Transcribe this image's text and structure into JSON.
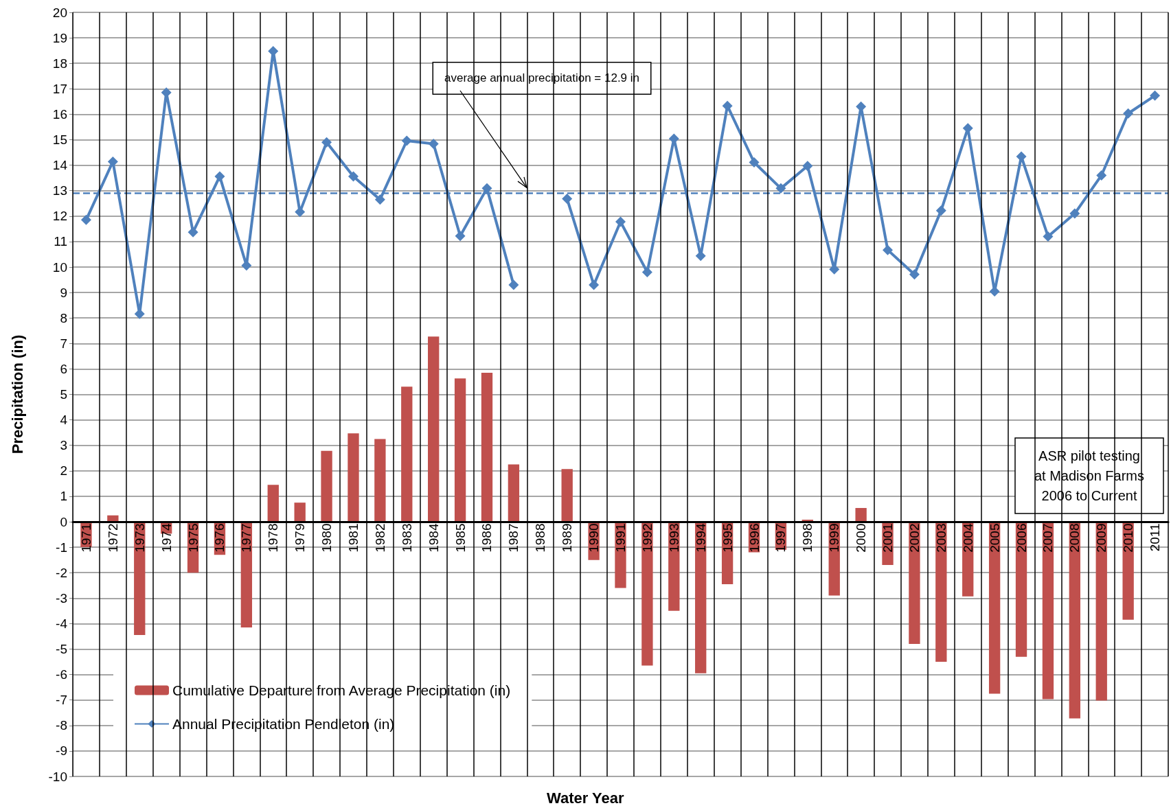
{
  "chart_data": {
    "type": "bar",
    "xlabel": "Water Year",
    "ylabel": "Precipitation (in)",
    "categories": [
      "1971",
      "1972",
      "1973",
      "1974",
      "1975",
      "1976",
      "1977",
      "1978",
      "1979",
      "1980",
      "1981",
      "1982",
      "1983",
      "1984",
      "1985",
      "1986",
      "1987",
      "1988",
      "1989",
      "1990",
      "1991",
      "1992",
      "1993",
      "1994",
      "1995",
      "1996",
      "1997",
      "1998",
      "1999",
      "2000",
      "2001",
      "2002",
      "2003",
      "2004",
      "2005",
      "2006",
      "2007",
      "2008",
      "2009",
      "2010",
      "2011"
    ],
    "series": [
      {
        "name": "Cumulative Departure from Average Precipitation (in)",
        "color": "#c0504d",
        "values": [
          -1.0,
          0.25,
          -4.45,
          -0.47,
          -2.0,
          -1.3,
          -4.15,
          1.45,
          0.75,
          2.78,
          3.47,
          3.25,
          5.3,
          7.27,
          5.63,
          5.85,
          2.25,
          null,
          2.07,
          -1.5,
          -2.6,
          -5.65,
          -3.5,
          -5.95,
          -2.45,
          -1.2,
          -1.1,
          0.08,
          -2.9,
          0.54,
          -1.7,
          -4.8,
          -5.5,
          -2.93,
          -6.75,
          -5.3,
          -6.97,
          -7.72,
          -7.02,
          -3.85,
          null
        ]
      },
      {
        "name": "Annual Precipitation Pendleton (in)",
        "type": "line",
        "color": "#4f81bd",
        "marker": "diamond",
        "line_style": "solid",
        "values": [
          11.85,
          14.14,
          8.16,
          16.85,
          11.37,
          13.56,
          10.06,
          18.48,
          12.16,
          14.9,
          13.56,
          12.65,
          14.96,
          14.84,
          11.22,
          13.09,
          9.3,
          null,
          12.68,
          9.3,
          11.78,
          9.8,
          15.04,
          10.44,
          16.33,
          14.11,
          13.09,
          13.97,
          9.91,
          16.3,
          10.67,
          9.71,
          12.22,
          15.45,
          9.04,
          14.34,
          11.2,
          12.1,
          13.6,
          16.03,
          16.73
        ]
      }
    ],
    "ylim": [
      -10,
      20
    ],
    "yticks": [
      -10,
      -9,
      -8,
      -7,
      -6,
      -5,
      -4,
      -3,
      -2,
      -1,
      0,
      1,
      2,
      3,
      4,
      5,
      6,
      7,
      8,
      9,
      10,
      11,
      12,
      13,
      14,
      15,
      16,
      17,
      18,
      19,
      20
    ],
    "ref_lines": [
      {
        "axis": "y",
        "value": 12.9,
        "label": "average annual precipitation = 12.9 in",
        "color": "#4f81bd",
        "line_style": "dashed"
      }
    ],
    "annotations": [
      "ASR pilot testing\nat Madison Farms\n2006 to Current"
    ],
    "grid": true,
    "legend": "bottom left"
  }
}
